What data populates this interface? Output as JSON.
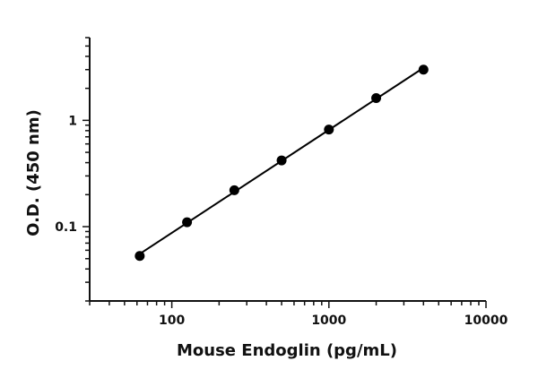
{
  "chart_data": {
    "type": "scatter",
    "x_scale": "log",
    "y_scale": "log",
    "xlabel": "Mouse Endoglin (pg/mL)",
    "ylabel": "O.D. (450 nm)",
    "xlim": [
      30,
      10000
    ],
    "ylim": [
      0.02,
      6
    ],
    "x_ticks": [
      {
        "value": 100,
        "label": "100"
      },
      {
        "value": 1000,
        "label": "1000"
      },
      {
        "value": 10000,
        "label": "10000"
      }
    ],
    "y_ticks": [
      {
        "value": 0.1,
        "label": "0.1"
      },
      {
        "value": 1,
        "label": "1"
      }
    ],
    "grid": false,
    "fit_line": true,
    "marker_color": "#000000",
    "line_color": "#000000",
    "series": [
      {
        "points": [
          {
            "x": 62.5,
            "y": 0.053
          },
          {
            "x": 125,
            "y": 0.11
          },
          {
            "x": 250,
            "y": 0.22
          },
          {
            "x": 500,
            "y": 0.42
          },
          {
            "x": 1000,
            "y": 0.82
          },
          {
            "x": 2000,
            "y": 1.62
          },
          {
            "x": 4000,
            "y": 3.0
          }
        ]
      }
    ]
  }
}
